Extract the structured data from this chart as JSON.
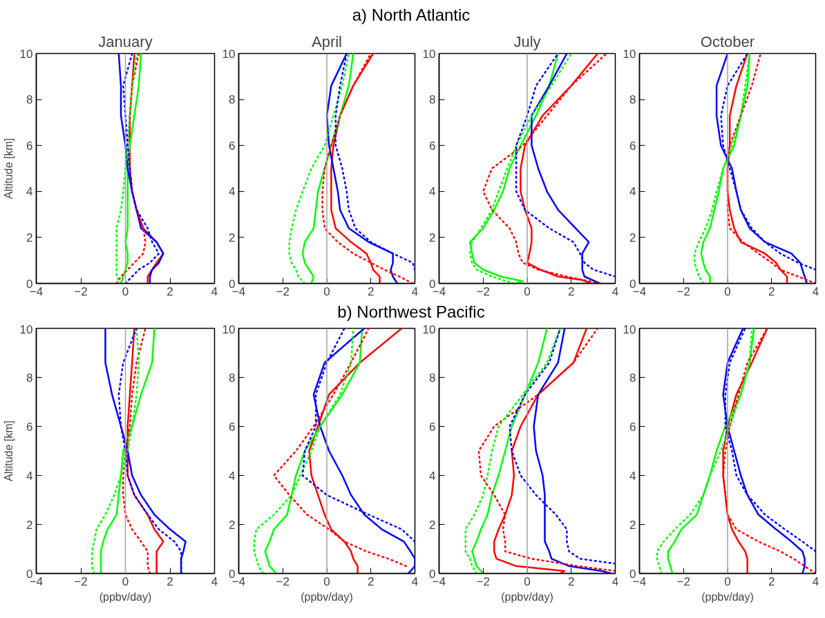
{
  "chart_data": [
    {
      "type": "line",
      "annotations": [
        "a) North Atlantic"
      ],
      "title": "January",
      "ylabel": "Altitude [km]",
      "xlim": [
        -4,
        4
      ],
      "xticks": [
        -4,
        -2,
        0,
        2,
        4
      ],
      "ylim": [
        0,
        10
      ],
      "yticks": [
        0,
        2,
        4,
        6,
        8,
        10
      ],
      "ref_lines": [
        {
          "axis": "x",
          "value": 0,
          "color": "#a0a0a0"
        }
      ],
      "series": [
        {
          "color": "#ff0000",
          "line_style": "solid",
          "x": [
            1.0,
            1.0,
            1.2,
            1.4,
            1.7,
            1.4,
            0.8,
            0.5,
            0.3,
            0.2,
            0.2,
            0.2,
            0.3,
            0.4
          ],
          "values": [
            0,
            0.3,
            0.6,
            0.9,
            1.3,
            1.8,
            2.4,
            3.2,
            4,
            5,
            6,
            7.3,
            8.6,
            10
          ]
        },
        {
          "color": "#00ff00",
          "line_style": "solid",
          "x": [
            -0.2,
            -0.1,
            0.0,
            0.1,
            0.1,
            0.0,
            0.1,
            0.1,
            0.1,
            0.1,
            0.2,
            0.4,
            0.6,
            0.7
          ],
          "values": [
            0,
            0.3,
            0.6,
            0.9,
            1.3,
            1.8,
            2.4,
            3.2,
            4,
            5,
            6,
            7.3,
            8.6,
            10
          ]
        },
        {
          "color": "#0000ff",
          "line_style": "solid",
          "x": [
            1.1,
            1.1,
            1.2,
            1.5,
            1.7,
            1.4,
            0.7,
            0.5,
            0.3,
            0.1,
            0.0,
            -0.2,
            -0.2,
            -0.3
          ],
          "values": [
            0,
            0.3,
            0.6,
            0.9,
            1.3,
            1.8,
            2.4,
            3.2,
            4,
            5,
            6,
            7.3,
            8.6,
            10
          ]
        },
        {
          "color": "#ff0000",
          "line_style": "dotted",
          "x": [
            -0.4,
            -0.2,
            0.1,
            0.4,
            0.8,
            0.9,
            0.8,
            0.5,
            0.3,
            0.2,
            0.1,
            0.2,
            0.3,
            0.6
          ],
          "values": [
            0,
            0.3,
            0.6,
            0.9,
            1.3,
            1.8,
            2.4,
            3.2,
            4,
            5,
            6,
            7.3,
            8.6,
            10
          ]
        },
        {
          "color": "#00ff00",
          "line_style": "dotted",
          "x": [
            -0.2,
            -0.4,
            -0.4,
            -0.4,
            -0.4,
            -0.4,
            -0.4,
            -0.2,
            -0.1,
            0.0,
            0.1,
            0.2,
            0.3,
            0.5
          ],
          "values": [
            0,
            0.3,
            0.6,
            0.9,
            1.3,
            1.8,
            2.4,
            3.2,
            4,
            5,
            6,
            7.3,
            8.6,
            10
          ]
        },
        {
          "color": "#0000ff",
          "line_style": "dotted",
          "x": [
            0.0,
            0.3,
            0.6,
            1.1,
            1.5,
            1.2,
            1.0,
            0.5,
            0.3,
            0.2,
            0.1,
            0.0,
            -0.1,
            0.3
          ],
          "values": [
            0,
            0.3,
            0.6,
            0.9,
            1.3,
            1.8,
            2.4,
            3.2,
            4,
            5,
            6,
            7.3,
            8.6,
            10
          ]
        }
      ]
    },
    {
      "type": "line",
      "title": "April",
      "xlim": [
        -4,
        4
      ],
      "xticks": [
        -4,
        -2,
        0,
        2,
        4
      ],
      "ylim": [
        0,
        10
      ],
      "yticks": [
        0,
        2,
        4,
        6,
        8,
        10
      ],
      "ref_lines": [
        {
          "axis": "x",
          "value": 0,
          "color": "#a0a0a0"
        }
      ],
      "series": [
        {
          "color": "#ff0000",
          "line_style": "solid",
          "x": [
            2.4,
            2.4,
            2.1,
            2.0,
            1.8,
            1.1,
            0.4,
            0.2,
            0.2,
            0.2,
            0.3,
            0.6,
            1.2,
            2.1
          ],
          "values": [
            0,
            0.3,
            0.6,
            0.9,
            1.3,
            1.8,
            2.4,
            3.2,
            4,
            5,
            6,
            7.3,
            8.6,
            10
          ]
        },
        {
          "color": "#00ff00",
          "line_style": "solid",
          "x": [
            -0.7,
            -0.6,
            -0.8,
            -1.0,
            -1.1,
            -1.0,
            -0.6,
            -0.5,
            -0.4,
            -0.1,
            0.2,
            0.6,
            1.0,
            1.2
          ],
          "values": [
            0,
            0.3,
            0.6,
            0.9,
            1.3,
            1.8,
            2.4,
            3.2,
            4,
            5,
            6,
            7.3,
            8.6,
            10
          ]
        },
        {
          "color": "#0000ff",
          "line_style": "solid",
          "x": [
            3.2,
            3.0,
            2.9,
            3.0,
            3.0,
            1.9,
            1.0,
            0.6,
            0.5,
            0.3,
            0.1,
            0.0,
            0.2,
            0.9
          ],
          "values": [
            0,
            0.3,
            0.6,
            0.9,
            1.3,
            1.8,
            2.4,
            3.2,
            4,
            5,
            6,
            7.3,
            8.6,
            10
          ]
        },
        {
          "color": "#ff0000",
          "line_style": "dotted",
          "x": [
            3.9,
            3.3,
            2.6,
            2.0,
            1.2,
            0.5,
            -0.1,
            -0.2,
            -0.2,
            -0.1,
            0.2,
            0.6,
            1.2,
            2.0
          ],
          "values": [
            0,
            0.3,
            0.6,
            0.9,
            1.3,
            1.8,
            2.4,
            3.2,
            4,
            5,
            6,
            7.3,
            8.6,
            10
          ]
        },
        {
          "color": "#00ff00",
          "line_style": "dotted",
          "x": [
            -1.0,
            -1.3,
            -1.4,
            -1.6,
            -1.7,
            -1.7,
            -1.6,
            -1.4,
            -1.1,
            -0.7,
            -0.1,
            0.3,
            0.7,
            1.0
          ],
          "values": [
            0,
            0.3,
            0.6,
            0.9,
            1.3,
            1.8,
            2.4,
            3.2,
            4,
            5,
            6,
            7.3,
            8.6,
            10
          ]
        },
        {
          "color": "#0000ff",
          "line_style": "dotted",
          "x": [
            4.0,
            3.9,
            3.0,
            2.0,
            1.3,
            1.0,
            0.9,
            0.7,
            0.4,
            0.4,
            0.6,
            0.9
          ],
          "values": [
            0.6,
            0.9,
            1.3,
            1.8,
            2.4,
            3.2,
            4,
            5,
            6,
            7.3,
            8.6,
            10
          ]
        }
      ]
    },
    {
      "type": "line",
      "title": "July",
      "xlim": [
        -4,
        4
      ],
      "xticks": [
        -4,
        -2,
        0,
        2,
        4
      ],
      "ylim": [
        0,
        10
      ],
      "yticks": [
        0,
        2,
        4,
        6,
        8,
        10
      ],
      "ref_lines": [
        {
          "axis": "x",
          "value": 0,
          "color": "#a0a0a0"
        }
      ],
      "series": [
        {
          "color": "#ff0000",
          "line_style": "solid",
          "x": [
            2.9,
            2.5,
            1.4,
            0.6,
            0.0,
            0.1,
            0.2,
            0.2,
            -0.1,
            -0.3,
            -0.3,
            -0.1,
            0.7,
            2.0,
            3.2
          ],
          "values": [
            0,
            0.15,
            0.3,
            0.6,
            0.9,
            1.3,
            1.8,
            2.4,
            3.2,
            4,
            5,
            6,
            7.3,
            8.6,
            10
          ]
        },
        {
          "color": "#00ff00",
          "line_style": "solid",
          "x": [
            -0.5,
            -0.2,
            -1.2,
            -2.0,
            -2.4,
            -2.5,
            -2.6,
            -2.0,
            -1.5,
            -1.1,
            -0.8,
            -0.3,
            0.4,
            1.0,
            1.4
          ],
          "values": [
            0,
            0.1,
            0.3,
            0.6,
            0.9,
            1.3,
            1.8,
            2.4,
            3.2,
            4,
            5,
            6,
            7.3,
            8.6,
            10
          ]
        },
        {
          "color": "#0000ff",
          "line_style": "solid",
          "x": [
            3.3,
            2.6,
            2.5,
            2.5,
            2.5,
            2.8,
            2.2,
            1.4,
            0.9,
            0.5,
            0.2,
            0.2,
            1.0,
            1.8
          ],
          "values": [
            0,
            0.3,
            0.6,
            0.9,
            1.3,
            1.8,
            2.4,
            3.2,
            4,
            5,
            6,
            7.3,
            8.6,
            10
          ]
        },
        {
          "color": "#ff0000",
          "line_style": "dotted",
          "x": [
            3.3,
            1.8,
            0.5,
            -0.2,
            -0.4,
            -0.5,
            -0.8,
            -1.6,
            -2.0,
            -1.6,
            -0.2,
            0.9,
            2.0,
            3.6
          ],
          "values": [
            0,
            0.3,
            0.6,
            0.9,
            1.3,
            1.8,
            2.4,
            3.2,
            4,
            5,
            6,
            7.3,
            8.6,
            10
          ]
        },
        {
          "color": "#00ff00",
          "line_style": "dotted",
          "x": [
            -0.6,
            -1.6,
            -2.3,
            -2.5,
            -2.6,
            -2.5,
            -2.1,
            -1.6,
            -1.3,
            -0.9,
            -0.5,
            0.2,
            1.1,
            2.0
          ],
          "values": [
            0,
            0.3,
            0.6,
            0.9,
            1.3,
            1.8,
            2.4,
            3.2,
            4,
            5,
            6,
            7.3,
            8.6,
            10
          ]
        },
        {
          "color": "#0000ff",
          "line_style": "dotted",
          "x": [
            4.0,
            3.0,
            2.6,
            2.4,
            2.1,
            1.0,
            -0.1,
            -0.5,
            -0.5,
            -0.5,
            0.0,
            0.4,
            1.4
          ],
          "values": [
            0.3,
            0.6,
            0.9,
            1.3,
            1.8,
            2.4,
            3.2,
            4,
            5,
            6,
            7.3,
            8.6,
            10
          ]
        }
      ]
    },
    {
      "type": "line",
      "title": "October",
      "xlim": [
        -4,
        4
      ],
      "xticks": [
        -4,
        -2,
        0,
        2,
        4
      ],
      "ylim": [
        0,
        10
      ],
      "yticks": [
        0,
        2,
        4,
        6,
        8,
        10
      ],
      "ref_lines": [
        {
          "axis": "x",
          "value": 0,
          "color": "#a0a0a0"
        }
      ],
      "series": [
        {
          "color": "#ff0000",
          "line_style": "solid",
          "x": [
            2.7,
            2.7,
            2.4,
            2.2,
            1.7,
            0.6,
            0.3,
            0.1,
            0.0,
            0.0,
            0.1,
            0.1,
            0.4,
            0.9
          ],
          "values": [
            0,
            0.3,
            0.6,
            0.9,
            1.3,
            1.8,
            2.4,
            3.2,
            4,
            5,
            6,
            7.3,
            8.6,
            10
          ]
        },
        {
          "color": "#00ff00",
          "line_style": "solid",
          "x": [
            -0.8,
            -0.8,
            -1.0,
            -1.1,
            -1.2,
            -1.1,
            -0.8,
            -0.6,
            -0.4,
            -0.2,
            0.3,
            0.6,
            0.9,
            1.0
          ],
          "values": [
            0,
            0.3,
            0.6,
            0.9,
            1.3,
            1.8,
            2.4,
            3.2,
            4,
            5,
            6,
            7.3,
            8.6,
            10
          ]
        },
        {
          "color": "#0000ff",
          "line_style": "solid",
          "x": [
            3.6,
            3.5,
            3.4,
            3.3,
            2.9,
            1.7,
            1.0,
            0.6,
            0.4,
            0.2,
            -0.3,
            -0.5,
            -0.5,
            0.0
          ],
          "values": [
            0,
            0.3,
            0.6,
            0.9,
            1.3,
            1.8,
            2.4,
            3.2,
            4,
            5,
            6,
            7.3,
            8.6,
            10
          ]
        },
        {
          "color": "#ff0000",
          "line_style": "dotted",
          "x": [
            4.0,
            3.2,
            2.4,
            2.0,
            1.4,
            0.7,
            0.1,
            0.0,
            0.0,
            0.0,
            0.1,
            0.6,
            1.1,
            1.5
          ],
          "values": [
            0,
            0.3,
            0.6,
            0.9,
            1.3,
            1.8,
            2.4,
            3.2,
            4,
            5,
            6,
            7.3,
            8.6,
            10
          ]
        },
        {
          "color": "#00ff00",
          "line_style": "dotted",
          "x": [
            -1.1,
            -1.3,
            -1.4,
            -1.5,
            -1.5,
            -1.3,
            -1.0,
            -0.7,
            -0.5,
            -0.2,
            0.2,
            0.6,
            0.8,
            1.0
          ],
          "values": [
            0,
            0.3,
            0.6,
            0.9,
            1.3,
            1.8,
            2.4,
            3.2,
            4,
            5,
            6,
            7.3,
            8.6,
            10
          ]
        },
        {
          "color": "#0000ff",
          "line_style": "dotted",
          "x": [
            4.0,
            3.2,
            2.4,
            1.7,
            1.1,
            0.6,
            0.4,
            0.1,
            -0.2,
            -0.3,
            0.0,
            0.9
          ],
          "values": [
            0.6,
            0.9,
            1.3,
            1.8,
            2.4,
            3.2,
            4,
            5,
            6,
            7.3,
            8.6,
            10
          ]
        }
      ]
    },
    {
      "type": "line",
      "annotations": [
        "b) Northwest Pacific"
      ],
      "ylabel": "Altitude [km]",
      "xlabel": "(ppbv/day)",
      "xlim": [
        -4,
        4
      ],
      "xticks": [
        -4,
        -2,
        0,
        2,
        4
      ],
      "ylim": [
        0,
        10
      ],
      "yticks": [
        0,
        2,
        4,
        6,
        8,
        10
      ],
      "ref_lines": [
        {
          "axis": "x",
          "value": 0,
          "color": "#a0a0a0"
        }
      ],
      "series": [
        {
          "color": "#ff0000",
          "line_style": "solid",
          "x": [
            1.4,
            1.4,
            1.4,
            1.4,
            1.7,
            1.3,
            1.0,
            0.4,
            0.1,
            0.1,
            0.1,
            0.2,
            0.3,
            0.4
          ],
          "values": [
            0,
            0.3,
            0.6,
            0.9,
            1.3,
            1.8,
            2.4,
            3.2,
            4,
            5,
            6,
            7.3,
            8.6,
            10
          ]
        },
        {
          "color": "#00ff00",
          "line_style": "solid",
          "x": [
            -1.1,
            -1.1,
            -1.1,
            -1.1,
            -1.0,
            -0.8,
            -0.4,
            -0.3,
            -0.2,
            -0.1,
            0.3,
            0.7,
            1.2,
            1.3
          ],
          "values": [
            0,
            0.3,
            0.6,
            0.9,
            1.3,
            1.8,
            2.4,
            3.2,
            4,
            5,
            6,
            7.3,
            8.6,
            10
          ]
        },
        {
          "color": "#0000ff",
          "line_style": "solid",
          "x": [
            2.5,
            2.5,
            2.5,
            2.6,
            2.7,
            2.0,
            1.3,
            0.7,
            0.3,
            0.1,
            -0.2,
            -0.6,
            -0.9,
            -0.9
          ],
          "values": [
            0,
            0.3,
            0.6,
            0.9,
            1.3,
            1.8,
            2.4,
            3.2,
            4,
            5,
            6,
            7.3,
            8.6,
            10
          ]
        },
        {
          "color": "#ff0000",
          "line_style": "dotted",
          "x": [
            1.1,
            1.0,
            1.0,
            1.0,
            0.7,
            0.3,
            0.0,
            -0.1,
            -0.1,
            0.0,
            0.2,
            0.3,
            0.5,
            0.9
          ],
          "values": [
            0,
            0.3,
            0.6,
            0.9,
            1.3,
            1.8,
            2.4,
            3.2,
            4,
            5,
            6,
            7.3,
            8.6,
            10
          ]
        },
        {
          "color": "#00ff00",
          "line_style": "dotted",
          "x": [
            -1.4,
            -1.5,
            -1.5,
            -1.5,
            -1.4,
            -1.3,
            -0.9,
            -0.5,
            -0.2,
            0.1,
            0.3,
            0.5,
            0.6,
            0.5
          ],
          "values": [
            0,
            0.3,
            0.6,
            0.9,
            1.3,
            1.8,
            2.4,
            3.2,
            4,
            5,
            6,
            7.3,
            8.6,
            10
          ]
        },
        {
          "color": "#0000ff",
          "line_style": "dotted",
          "x": [
            2.5,
            2.5,
            2.5,
            2.5,
            2.2,
            1.5,
            1.0,
            0.4,
            0.1,
            0.0,
            -0.2,
            -0.3,
            -0.1,
            0.5
          ],
          "values": [
            0,
            0.3,
            0.6,
            0.9,
            1.3,
            1.8,
            2.4,
            3.2,
            4,
            5,
            6,
            7.3,
            8.6,
            10
          ]
        }
      ]
    },
    {
      "type": "line",
      "xlabel": "(ppbv/day)",
      "xlim": [
        -4,
        4
      ],
      "xticks": [
        -4,
        -2,
        0,
        2,
        4
      ],
      "ylim": [
        0,
        10
      ],
      "yticks": [
        0,
        2,
        4,
        6,
        8,
        10
      ],
      "ref_lines": [
        {
          "axis": "x",
          "value": 0,
          "color": "#a0a0a0"
        }
      ],
      "series": [
        {
          "color": "#ff0000",
          "line_style": "solid",
          "x": [
            1.4,
            1.4,
            1.2,
            1.1,
            0.8,
            0.2,
            -0.1,
            -0.4,
            -0.7,
            -0.8,
            -0.4,
            0.1,
            1.5,
            3.4
          ],
          "values": [
            0,
            0.3,
            0.6,
            0.9,
            1.3,
            1.8,
            2.4,
            3.2,
            4,
            5,
            6,
            7.3,
            8.6,
            10
          ]
        },
        {
          "color": "#00ff00",
          "line_style": "solid",
          "x": [
            -2.3,
            -2.6,
            -2.7,
            -2.8,
            -2.6,
            -2.4,
            -1.8,
            -1.6,
            -1.4,
            -1.0,
            -0.3,
            0.7,
            1.5,
            1.6
          ],
          "values": [
            0,
            0.3,
            0.6,
            0.9,
            1.3,
            1.8,
            2.4,
            3.2,
            4,
            5,
            6,
            7.3,
            8.6,
            10
          ]
        },
        {
          "color": "#0000ff",
          "line_style": "solid",
          "x": [
            3.7,
            4.0,
            4.0,
            3.8,
            3.5,
            2.5,
            1.7,
            1.1,
            0.7,
            0.1,
            -0.3,
            -0.6,
            -0.1,
            1.7
          ],
          "values": [
            0,
            0.3,
            0.6,
            0.9,
            1.3,
            1.8,
            2.4,
            3.2,
            4,
            5,
            6,
            7.3,
            8.6,
            10
          ]
        },
        {
          "color": "#ff0000",
          "line_style": "dotted",
          "x": [
            3.6,
            2.8,
            1.8,
            0.8,
            0.1,
            -0.9,
            -1.7,
            -2.4,
            -1.4,
            -0.6,
            0.3,
            1.1,
            1.9
          ],
          "values": [
            0.3,
            0.6,
            0.9,
            1.3,
            1.8,
            2.4,
            3.2,
            4,
            5,
            6,
            7.3,
            8.6,
            10
          ]
        },
        {
          "color": "#00ff00",
          "line_style": "dotted",
          "x": [
            -2.9,
            -3.1,
            -3.2,
            -3.3,
            -3.3,
            -3.2,
            -2.4,
            -1.6,
            -1.2,
            -0.7,
            -0.3,
            0.6,
            1.1,
            1.2
          ],
          "values": [
            0,
            0.3,
            0.6,
            0.9,
            1.3,
            1.8,
            2.4,
            3.2,
            4,
            5,
            6,
            7.3,
            8.6,
            10
          ]
        },
        {
          "color": "#0000ff",
          "line_style": "dotted",
          "x": [
            4.0,
            3.4,
            1.9,
            0.0,
            -1.1,
            -1.0,
            -0.5,
            -0.5,
            0.0,
            0.8
          ],
          "values": [
            1.3,
            1.8,
            2.4,
            3.2,
            4,
            5,
            6,
            7.3,
            8.6,
            10
          ]
        }
      ]
    },
    {
      "type": "line",
      "xlabel": "(ppbv/day)",
      "xlim": [
        -4,
        4
      ],
      "xticks": [
        -4,
        -2,
        0,
        2,
        4
      ],
      "ylim": [
        0,
        10
      ],
      "yticks": [
        0,
        2,
        4,
        6,
        8,
        10
      ],
      "ref_lines": [
        {
          "axis": "x",
          "value": 0,
          "color": "#a0a0a0"
        }
      ],
      "series": [
        {
          "color": "#ff0000",
          "line_style": "solid",
          "x": [
            1.5,
            1.7,
            -0.5,
            -1.4,
            -1.5,
            -1.5,
            -1.3,
            -1.0,
            -0.7,
            -0.6,
            -0.7,
            -0.3,
            0.5,
            2.1,
            2.7
          ],
          "values": [
            0,
            0.1,
            0.3,
            0.6,
            0.9,
            1.3,
            1.8,
            2.4,
            3.2,
            4,
            5,
            6,
            7.3,
            8.6,
            10
          ]
        },
        {
          "color": "#00ff00",
          "line_style": "solid",
          "x": [
            -2.0,
            -2.3,
            -2.4,
            -2.5,
            -2.3,
            -2.1,
            -1.8,
            -1.6,
            -1.3,
            -1.0,
            -0.7,
            -0.1,
            0.5,
            0.9
          ],
          "values": [
            0,
            0.3,
            0.6,
            0.9,
            1.3,
            1.8,
            2.4,
            3.2,
            4,
            5,
            6,
            7.3,
            8.6,
            10
          ]
        },
        {
          "color": "#0000ff",
          "line_style": "solid",
          "x": [
            3.8,
            3.4,
            1.9,
            1.1,
            1.0,
            0.8,
            0.8,
            0.8,
            0.8,
            0.7,
            0.4,
            0.3,
            0.5,
            1.4,
            1.7
          ],
          "values": [
            0,
            0.1,
            0.3,
            0.6,
            0.9,
            1.3,
            1.8,
            2.4,
            3.2,
            4,
            5,
            6,
            7.3,
            8.6,
            10
          ]
        },
        {
          "color": "#ff0000",
          "line_style": "dotted",
          "x": [
            4.0,
            2.3,
            0.2,
            -1.0,
            -1.0,
            -1.1,
            -1.0,
            -1.5,
            -2.1,
            -2.2,
            -1.5,
            0.5,
            2.1,
            3.2
          ],
          "values": [
            0.1,
            0.3,
            0.6,
            0.9,
            1.3,
            1.8,
            2.4,
            3.2,
            4,
            5,
            6,
            7.3,
            8.6,
            10
          ]
        },
        {
          "color": "#00ff00",
          "line_style": "dotted",
          "x": [
            -2.3,
            -2.5,
            -2.6,
            -2.8,
            -2.8,
            -2.8,
            -2.4,
            -2.0,
            -1.8,
            -1.6,
            -1.3,
            -0.2,
            0.9,
            1.5
          ],
          "values": [
            0,
            0.3,
            0.6,
            0.9,
            1.3,
            1.8,
            2.4,
            3.2,
            4,
            5,
            6,
            7.3,
            8.6,
            10
          ]
        },
        {
          "color": "#0000ff",
          "line_style": "dotted",
          "x": [
            4.0,
            2.4,
            1.9,
            1.8,
            1.8,
            1.3,
            0.4,
            -0.3,
            -0.7,
            -0.8,
            -0.1,
            1.0,
            1.5
          ],
          "values": [
            0.4,
            0.6,
            0.9,
            1.3,
            1.8,
            2.4,
            3.2,
            4,
            5,
            6,
            7.3,
            8.6,
            10
          ]
        }
      ]
    },
    {
      "type": "line",
      "xlabel": "(ppbv/day)",
      "xlim": [
        -4,
        4
      ],
      "xticks": [
        -4,
        -2,
        0,
        2,
        4
      ],
      "ylim": [
        0,
        10
      ],
      "yticks": [
        0,
        2,
        4,
        6,
        8,
        10
      ],
      "ref_lines": [
        {
          "axis": "x",
          "value": 0,
          "color": "#a0a0a0"
        }
      ],
      "series": [
        {
          "color": "#ff0000",
          "line_style": "solid",
          "x": [
            0.9,
            0.9,
            0.9,
            0.8,
            0.5,
            0.2,
            0.0,
            -0.1,
            -0.2,
            -0.2,
            0.0,
            0.4,
            1.1,
            1.8
          ],
          "values": [
            0,
            0.3,
            0.6,
            0.9,
            1.3,
            1.8,
            2.4,
            3.2,
            4,
            5,
            6,
            7.3,
            8.6,
            10
          ]
        },
        {
          "color": "#00ff00",
          "line_style": "solid",
          "x": [
            -2.5,
            -2.6,
            -2.7,
            -2.7,
            -2.4,
            -2.1,
            -1.4,
            -1.1,
            -0.8,
            -0.5,
            -0.1,
            0.6,
            1.0,
            1.2
          ],
          "values": [
            0,
            0.3,
            0.6,
            0.9,
            1.3,
            1.8,
            2.4,
            3.2,
            4,
            5,
            6,
            7.3,
            8.6,
            10
          ]
        },
        {
          "color": "#0000ff",
          "line_style": "solid",
          "x": [
            3.4,
            3.5,
            3.5,
            3.4,
            2.9,
            2.2,
            1.4,
            0.9,
            0.6,
            0.3,
            0.0,
            -0.2,
            0.0,
            0.7
          ],
          "values": [
            0,
            0.3,
            0.6,
            0.9,
            1.3,
            1.8,
            2.4,
            3.2,
            4,
            5,
            6,
            7.3,
            8.6,
            10
          ]
        },
        {
          "color": "#ff0000",
          "line_style": "dotted",
          "x": [
            4.0,
            3.5,
            3.0,
            2.4,
            1.4,
            0.4,
            0.0,
            -0.1,
            -0.2,
            -0.1,
            0.1,
            0.5,
            0.9,
            1.8
          ],
          "values": [
            0,
            0.3,
            0.6,
            0.9,
            1.3,
            1.8,
            2.4,
            3.2,
            4,
            5,
            6,
            7.3,
            8.6,
            10
          ]
        },
        {
          "color": "#00ff00",
          "line_style": "dotted",
          "x": [
            -3.0,
            -3.1,
            -3.2,
            -3.2,
            -2.9,
            -2.4,
            -1.7,
            -1.1,
            -0.8,
            -0.3,
            0.1,
            0.6,
            1.0,
            1.1
          ],
          "values": [
            0,
            0.3,
            0.6,
            0.9,
            1.3,
            1.8,
            2.4,
            3.2,
            4,
            5,
            6,
            7.3,
            8.6,
            10
          ]
        },
        {
          "color": "#0000ff",
          "line_style": "dotted",
          "x": [
            4.0,
            3.4,
            2.6,
            1.7,
            0.9,
            0.4,
            0.2,
            -0.1,
            -0.1,
            0.1,
            0.8
          ],
          "values": [
            0.9,
            1.3,
            1.8,
            2.4,
            3.2,
            4,
            5,
            6,
            7.3,
            8.6,
            10
          ]
        }
      ]
    }
  ]
}
